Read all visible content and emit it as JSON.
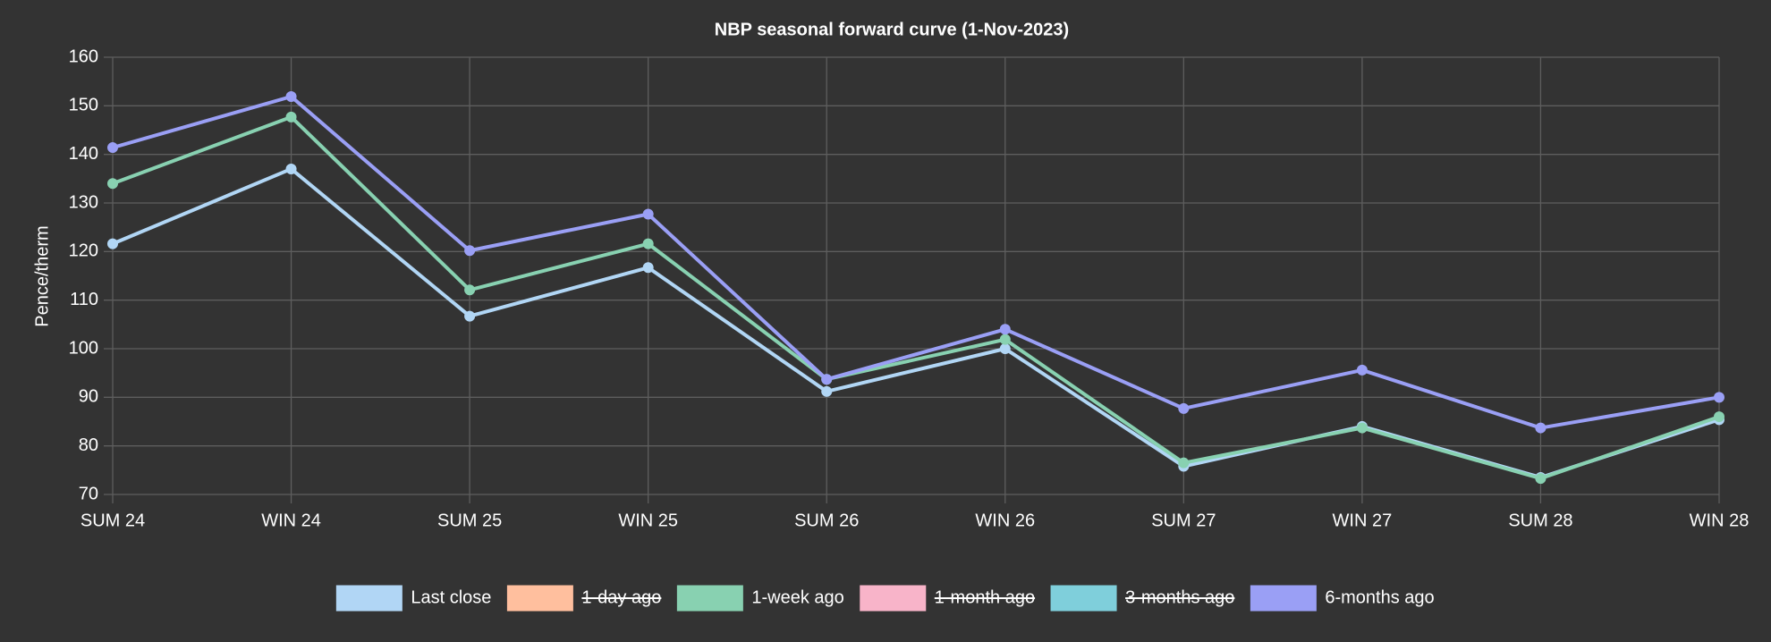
{
  "chart_data": {
    "type": "line",
    "title": "NBP seasonal forward curve (1-Nov-2023)",
    "y_label": "Pence/therm",
    "categories": [
      "SUM 24",
      "WIN 24",
      "SUM 25",
      "WIN 25",
      "SUM 26",
      "WIN 26",
      "SUM 27",
      "WIN 27",
      "SUM 28",
      "WIN 28"
    ],
    "series": [
      {
        "name": "Last close",
        "color": "#b1d6f5",
        "values": [
          121.6,
          137,
          106.7,
          116.7,
          91.2,
          100,
          75.8,
          84,
          73.5,
          85.4
        ]
      },
      {
        "name": "1-day ago",
        "color": "#ffbf9e",
        "hidden": true
      },
      {
        "name": "1-week ago",
        "color": "#88d1b1",
        "values": [
          134,
          147.7,
          112.1,
          121.6,
          93.7,
          101.9,
          76.5,
          83.7,
          73.3,
          86
        ]
      },
      {
        "name": "1-month ago",
        "color": "#f8b4c9",
        "hidden": true
      },
      {
        "name": "3-months ago",
        "color": "#7fcfdb",
        "hidden": true
      },
      {
        "name": "6-months ago",
        "color": "#9a9ff5",
        "values": [
          141.4,
          151.9,
          120.2,
          127.7,
          93.7,
          104,
          87.7,
          95.6,
          83.7,
          90
        ]
      }
    ],
    "ylim": [
      70,
      160
    ],
    "yticks": [
      70,
      80,
      90,
      100,
      110,
      120,
      130,
      140,
      150,
      160
    ],
    "grid": true,
    "legend": "bottom"
  }
}
